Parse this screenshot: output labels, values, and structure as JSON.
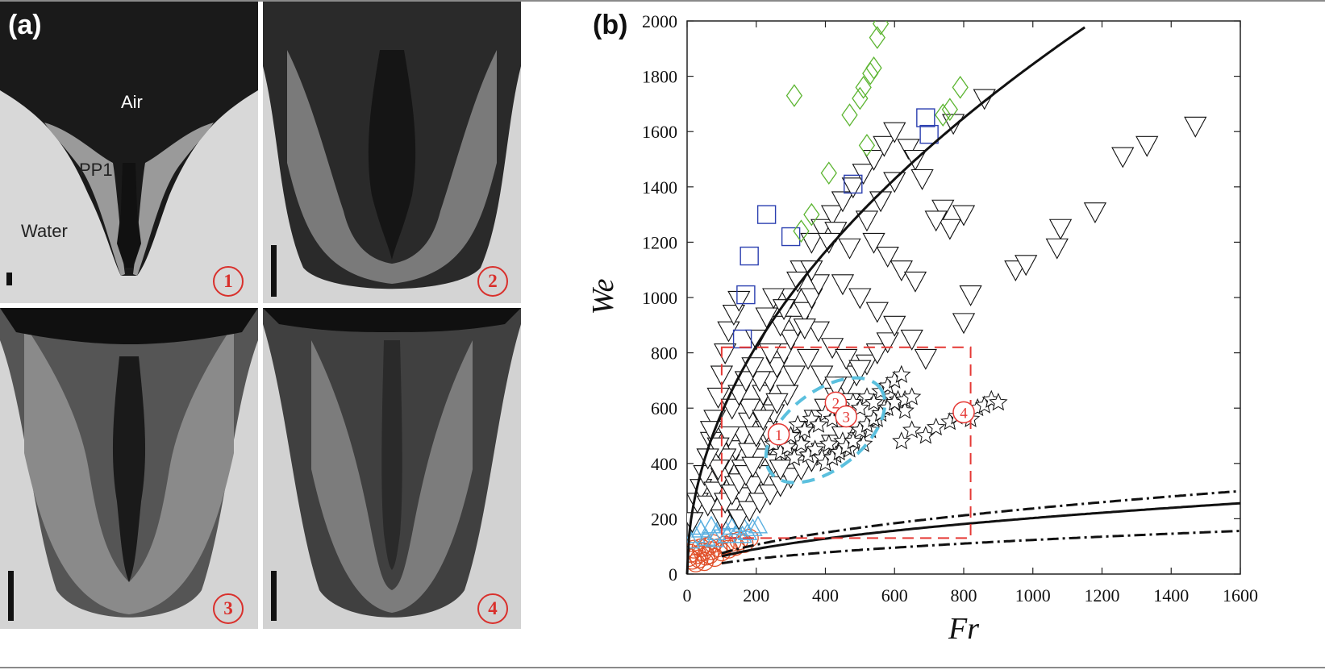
{
  "panel_a": {
    "label": "(a)",
    "phases": {
      "air": "Air",
      "pp1": "PP1",
      "water": "Water"
    },
    "frames": [
      "1",
      "2",
      "3",
      "4"
    ]
  },
  "panel_b": {
    "label": "(b)"
  },
  "colors": {
    "circles": "#e0502a",
    "triangles_up": "#5aafe0",
    "triangles_down": "#111111",
    "stars": "#111111",
    "squares": "#2b3fb0",
    "diamonds": "#5cb531",
    "region_box": "#e53935",
    "dashed_ellipse": "#5bc0de"
  },
  "chart_data": {
    "type": "scatter",
    "xlabel": "Fr",
    "ylabel": "We",
    "xlim": [
      0,
      1600
    ],
    "ylim": [
      0,
      2000
    ],
    "xticks": [
      "0",
      "200",
      "400",
      "600",
      "800",
      "1000",
      "1200",
      "1400",
      "1600"
    ],
    "yticks": [
      "0",
      "200",
      "400",
      "600",
      "800",
      "1000",
      "1200",
      "1400",
      "1600",
      "1800",
      "2000"
    ],
    "grid": false,
    "series": [
      {
        "marker": "circle",
        "points": [
          [
            5,
            60
          ],
          [
            10,
            75
          ],
          [
            15,
            50
          ],
          [
            20,
            90
          ],
          [
            25,
            40
          ],
          [
            30,
            70
          ],
          [
            35,
            55
          ],
          [
            40,
            95
          ],
          [
            45,
            80
          ],
          [
            50,
            45
          ],
          [
            55,
            65
          ],
          [
            60,
            100
          ],
          [
            65,
            70
          ],
          [
            70,
            85
          ],
          [
            75,
            110
          ],
          [
            80,
            60
          ],
          [
            90,
            95
          ],
          [
            100,
            80
          ],
          [
            110,
            105
          ],
          [
            120,
            90
          ],
          [
            130,
            115
          ],
          [
            140,
            100
          ],
          [
            150,
            120
          ],
          [
            165,
            110
          ],
          [
            180,
            130
          ]
        ]
      },
      {
        "marker": "triangle-up",
        "points": [
          [
            10,
            120
          ],
          [
            25,
            140
          ],
          [
            40,
            160
          ],
          [
            55,
            130
          ],
          [
            70,
            175
          ],
          [
            85,
            150
          ],
          [
            100,
            185
          ],
          [
            115,
            140
          ],
          [
            130,
            170
          ],
          [
            145,
            155
          ],
          [
            160,
            180
          ],
          [
            175,
            150
          ],
          [
            190,
            165
          ],
          [
            205,
            175
          ],
          [
            35,
            170
          ],
          [
            80,
            125
          ],
          [
            120,
            190
          ],
          [
            160,
            140
          ]
        ]
      },
      {
        "marker": "triangle-down",
        "points": [
          [
            15,
            190
          ],
          [
            30,
            260
          ],
          [
            40,
            310
          ],
          [
            50,
            360
          ],
          [
            60,
            420
          ],
          [
            70,
            480
          ],
          [
            80,
            560
          ],
          [
            90,
            640
          ],
          [
            100,
            720
          ],
          [
            110,
            800
          ],
          [
            120,
            880
          ],
          [
            135,
            940
          ],
          [
            150,
            990
          ],
          [
            60,
            250
          ],
          [
            80,
            300
          ],
          [
            100,
            350
          ],
          [
            120,
            400
          ],
          [
            140,
            450
          ],
          [
            160,
            500
          ],
          [
            180,
            550
          ],
          [
            200,
            600
          ],
          [
            220,
            650
          ],
          [
            240,
            700
          ],
          [
            260,
            750
          ],
          [
            280,
            800
          ],
          [
            300,
            850
          ],
          [
            320,
            900
          ],
          [
            340,
            950
          ],
          [
            360,
            1000
          ],
          [
            380,
            1050
          ],
          [
            100,
            200
          ],
          [
            130,
            240
          ],
          [
            160,
            280
          ],
          [
            190,
            320
          ],
          [
            220,
            360
          ],
          [
            250,
            400
          ],
          [
            280,
            440
          ],
          [
            310,
            480
          ],
          [
            340,
            520
          ],
          [
            370,
            560
          ],
          [
            400,
            600
          ],
          [
            430,
            640
          ],
          [
            460,
            680
          ],
          [
            490,
            720
          ],
          [
            520,
            760
          ],
          [
            550,
            800
          ],
          [
            580,
            840
          ],
          [
            150,
            200
          ],
          [
            180,
            230
          ],
          [
            210,
            260
          ],
          [
            240,
            290
          ],
          [
            270,
            320
          ],
          [
            300,
            350
          ],
          [
            330,
            380
          ],
          [
            360,
            410
          ],
          [
            390,
            440
          ],
          [
            420,
            470
          ],
          [
            450,
            500
          ],
          [
            180,
            600
          ],
          [
            210,
            700
          ],
          [
            240,
            800
          ],
          [
            270,
            900
          ],
          [
            300,
            1000
          ],
          [
            330,
            1100
          ],
          [
            360,
            1200
          ],
          [
            390,
            1250
          ],
          [
            420,
            1300
          ],
          [
            450,
            1350
          ],
          [
            480,
            1400
          ],
          [
            510,
            1450
          ],
          [
            540,
            1500
          ],
          [
            570,
            1550
          ],
          [
            600,
            1600
          ],
          [
            640,
            1540
          ],
          [
            660,
            1500
          ],
          [
            680,
            1430
          ],
          [
            430,
            1240
          ],
          [
            470,
            1180
          ],
          [
            520,
            1280
          ],
          [
            560,
            1350
          ],
          [
            600,
            1420
          ],
          [
            540,
            1200
          ],
          [
            580,
            1150
          ],
          [
            620,
            1100
          ],
          [
            660,
            1060
          ],
          [
            410,
            1200
          ],
          [
            450,
            1050
          ],
          [
            500,
            1000
          ],
          [
            550,
            950
          ],
          [
            600,
            900
          ],
          [
            650,
            850
          ],
          [
            380,
            880
          ],
          [
            420,
            820
          ],
          [
            460,
            780
          ],
          [
            500,
            740
          ],
          [
            740,
            1320
          ],
          [
            760,
            1250
          ],
          [
            800,
            1300
          ],
          [
            720,
            1280
          ],
          [
            820,
            1010
          ],
          [
            800,
            910
          ],
          [
            690,
            780
          ],
          [
            860,
            1720
          ],
          [
            770,
            1630
          ],
          [
            950,
            1100
          ],
          [
            980,
            1120
          ],
          [
            1080,
            1250
          ],
          [
            1070,
            1180
          ],
          [
            1180,
            1310
          ],
          [
            1260,
            1510
          ],
          [
            1330,
            1550
          ],
          [
            1470,
            1620
          ],
          [
            320,
            1060
          ],
          [
            360,
            1100
          ],
          [
            230,
            930
          ],
          [
            200,
            850
          ],
          [
            250,
            1000
          ],
          [
            280,
            960
          ],
          [
            340,
            890
          ],
          [
            210,
            420
          ],
          [
            240,
            470
          ],
          [
            230,
            520
          ],
          [
            270,
            380
          ],
          [
            250,
            580
          ],
          [
            290,
            650
          ],
          [
            310,
            720
          ],
          [
            350,
            780
          ],
          [
            390,
            720
          ],
          [
            430,
            680
          ],
          [
            470,
            620
          ],
          [
            140,
            320
          ],
          [
            160,
            380
          ],
          [
            180,
            440
          ],
          [
            200,
            500
          ],
          [
            220,
            560
          ],
          [
            260,
            620
          ],
          [
            120,
            500
          ],
          [
            130,
            600
          ],
          [
            150,
            650
          ],
          [
            170,
            700
          ],
          [
            190,
            750
          ],
          [
            110,
            420
          ],
          [
            90,
            460
          ],
          [
            70,
            520
          ],
          [
            90,
            380
          ],
          [
            60,
            420
          ],
          [
            110,
            260
          ],
          [
            130,
            290
          ],
          [
            150,
            330
          ],
          [
            170,
            360
          ],
          [
            190,
            390
          ]
        ]
      },
      {
        "marker": "star",
        "points": [
          [
            250,
            470
          ],
          [
            270,
            440
          ],
          [
            290,
            460
          ],
          [
            310,
            420
          ],
          [
            330,
            470
          ],
          [
            350,
            430
          ],
          [
            370,
            450
          ],
          [
            390,
            420
          ],
          [
            410,
            470
          ],
          [
            430,
            430
          ],
          [
            450,
            480
          ],
          [
            470,
            450
          ],
          [
            490,
            500
          ],
          [
            510,
            470
          ],
          [
            530,
            520
          ],
          [
            550,
            560
          ],
          [
            570,
            600
          ],
          [
            590,
            640
          ],
          [
            610,
            630
          ],
          [
            630,
            590
          ],
          [
            300,
            500
          ],
          [
            320,
            540
          ],
          [
            340,
            520
          ],
          [
            360,
            560
          ],
          [
            380,
            540
          ],
          [
            400,
            580
          ],
          [
            420,
            560
          ],
          [
            440,
            600
          ],
          [
            460,
            580
          ],
          [
            480,
            620
          ],
          [
            500,
            600
          ],
          [
            520,
            640
          ],
          [
            540,
            620
          ],
          [
            560,
            660
          ],
          [
            580,
            680
          ],
          [
            600,
            700
          ],
          [
            620,
            720
          ],
          [
            400,
            400
          ],
          [
            420,
            420
          ],
          [
            440,
            440
          ],
          [
            460,
            460
          ],
          [
            480,
            480
          ],
          [
            500,
            520
          ],
          [
            520,
            540
          ],
          [
            540,
            560
          ],
          [
            560,
            580
          ],
          [
            580,
            600
          ],
          [
            600,
            620
          ],
          [
            620,
            480
          ],
          [
            650,
            520
          ],
          [
            690,
            500
          ],
          [
            720,
            530
          ],
          [
            760,
            550
          ],
          [
            780,
            570
          ],
          [
            800,
            580
          ],
          [
            820,
            560
          ],
          [
            840,
            600
          ],
          [
            860,
            610
          ],
          [
            880,
            630
          ],
          [
            900,
            620
          ],
          [
            630,
            630
          ],
          [
            650,
            640
          ]
        ]
      },
      {
        "marker": "square",
        "points": [
          [
            160,
            850
          ],
          [
            170,
            1010
          ],
          [
            180,
            1150
          ],
          [
            230,
            1300
          ],
          [
            300,
            1220
          ],
          [
            480,
            1410
          ],
          [
            700,
            1590
          ],
          [
            690,
            1650
          ]
        ]
      },
      {
        "marker": "diamond",
        "points": [
          [
            310,
            1730
          ],
          [
            410,
            1450
          ],
          [
            330,
            1240
          ],
          [
            360,
            1300
          ],
          [
            520,
            1550
          ],
          [
            470,
            1660
          ],
          [
            500,
            1720
          ],
          [
            510,
            1760
          ],
          [
            530,
            1810
          ],
          [
            540,
            1830
          ],
          [
            550,
            1940
          ],
          [
            560,
            1990
          ],
          [
            760,
            1680
          ],
          [
            790,
            1760
          ],
          [
            740,
            1660
          ]
        ]
      }
    ],
    "curves": [
      {
        "style": "solid",
        "form": "We = 58.3*sqrt(Fr)",
        "x_range": [
          0,
          1150
        ]
      },
      {
        "style": "solid",
        "form": "We = 6.4*sqrt(Fr)",
        "x_range": [
          100,
          1600
        ]
      },
      {
        "style": "dash-dot",
        "form": "We = 7.5*sqrt(Fr)",
        "x_range": [
          100,
          1600
        ]
      },
      {
        "style": "dash-dot",
        "form": "We = 3.9*sqrt(Fr)",
        "x_range": [
          100,
          1600
        ]
      }
    ],
    "region_box": {
      "x": [
        100,
        820
      ],
      "y": [
        130,
        820
      ]
    },
    "dashed_ellipse": {
      "center": [
        400,
        520
      ],
      "rx": 200,
      "ry": 140,
      "angle_deg": -38
    },
    "annotations": [
      {
        "text": "1",
        "at": [
          265,
          505
        ]
      },
      {
        "text": "2",
        "at": [
          430,
          620
        ]
      },
      {
        "text": "3",
        "at": [
          460,
          570
        ]
      },
      {
        "text": "4",
        "at": [
          800,
          585
        ]
      }
    ]
  }
}
